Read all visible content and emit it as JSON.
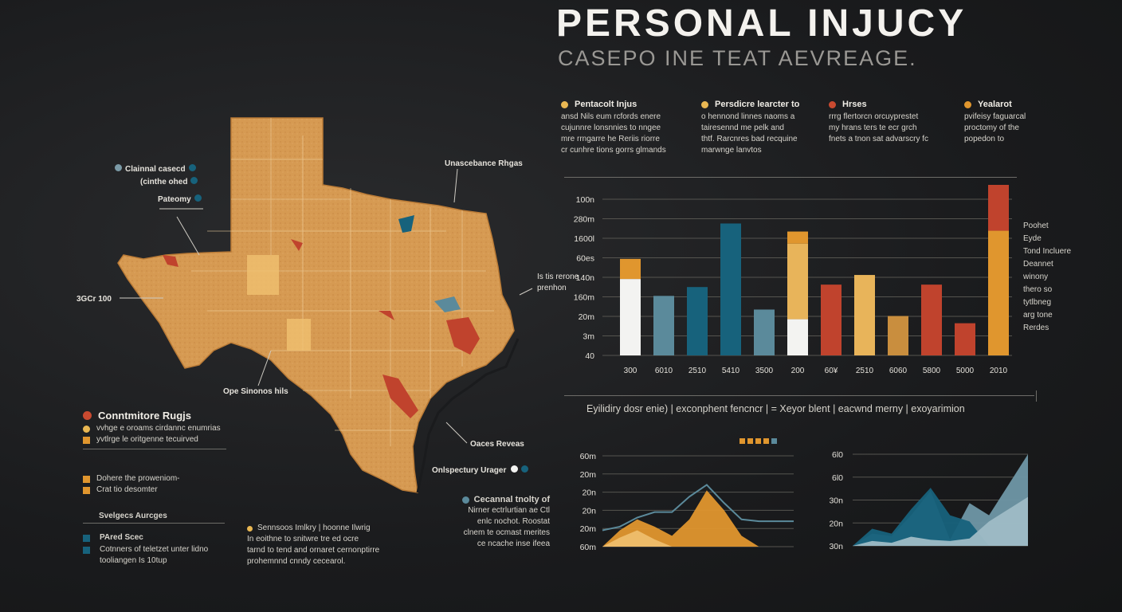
{
  "header": {
    "title": "PERSONAL INJUCY",
    "subtitle": "CASEPO INE TEAT AEVREAGE."
  },
  "colors": {
    "orange": "#e0962e",
    "light_orange": "#e8b45a",
    "red": "#c0432d",
    "teal": "#17627c",
    "steel": "#5b8a9b",
    "white": "#f3f3f1",
    "tan": "#d8a25a"
  },
  "top_legend": [
    {
      "color": "#e9b752",
      "title": "Pentacolt Injus",
      "lines": [
        "ansd Nils eum rcfords enere",
        "cujunnre lonsnnies to nngee",
        "mre rrngarre he Reriis riorre",
        "cr cunhre tions gorrs glmands"
      ]
    },
    {
      "color": "#e9b752",
      "title": "Persdicre learcter to",
      "lines": [
        "o hennond linnes naoms a",
        "tairesennd me pelk and",
        "thtf. Rarcnres bad recquine",
        "marwnge lanvtos"
      ]
    },
    {
      "color": "#c94a30",
      "title": "Hrses",
      "lines": [
        "rrrg flertorcn orcuyprestet",
        "my hrans ters te ecr grch",
        "fnets a tnon sat advarscry fc"
      ]
    },
    {
      "color": "#e0962e",
      "title": "Yealarot",
      "lines": [
        "pvifeisy faguarcal",
        "proctomy of the",
        "popedon to"
      ]
    }
  ],
  "map_labels": {
    "callout_1": "Clainnal casecd",
    "callout_2": "(cinthe ohed",
    "callout_3": "Pateomy",
    "callout_west": "3GCr 100",
    "callout_north": "Unascebance Rhgas",
    "callout_east_1": "Is tis rerone",
    "callout_east_2": "prenhon",
    "callout_south": "Ope Sinonos hils",
    "callout_coast": "Oaces Reveas",
    "callout_coast_2": "Onlspectury Urager"
  },
  "bottom_left": {
    "heading": "Conntmitore Rugjs",
    "lines": [
      "vvhge e oroams cirdannc enumrias",
      "yvtlrge le oritgenne tecuirved"
    ],
    "item_1": "Dohere the proweniom-",
    "item_2": "Crat tio desomter",
    "subheading": "Svelgecs Aurcges",
    "legend_1": "PAred Scec",
    "legend_2_lines": [
      "Cotnners of teletzet unter lidno",
      "tooliangen Is 10tup"
    ]
  },
  "bottom_mid": {
    "lines": [
      "Sennsoos Imlkry | hoonne Ilwrig",
      "In eoithne to snitwre tre ed ocre",
      "tarnd to tend and ornaret cernonptirre",
      "prohemnnd cnndy cecearol."
    ]
  },
  "bottom_note": {
    "title": "Cecannal tnolty of",
    "lines": [
      "Nirner ectrlurtian ae Ctl",
      "enlc nochot. Roostat",
      "clnem te ocmast merites",
      "ce ncache inse ifeea"
    ]
  },
  "bar_chart_side": {
    "lines": [
      "Poohet",
      "Eyde",
      "Tond Incluere",
      "Deannet",
      "winony",
      "thero so",
      "tytlbneg",
      "arg tone",
      "Rerdes"
    ]
  },
  "divider_caption": "Eyilidiry dosr enie)  |  exconphent fencncr  |  = Xeyor blent  |  eacwnd merny  |  exoyarimion",
  "chart_data": [
    {
      "type": "bar",
      "title": "",
      "y_tick_labels": [
        "100n",
        "280m",
        "1600l",
        "60es",
        "140n",
        "160m",
        "20m",
        "3m",
        "40"
      ],
      "categories": [
        "300",
        "6010",
        "2510",
        "5410",
        "3500",
        "200",
        "60¥",
        "2510",
        "6060",
        "5800",
        "5000",
        "2010"
      ],
      "series": [
        {
          "name": "white",
          "color": "#f3f3f1",
          "values": [
            95,
            0,
            0,
            0,
            0,
            45,
            0,
            0,
            0,
            0,
            0,
            0
          ]
        },
        {
          "name": "steel",
          "color": "#5b8a9b",
          "values": [
            0,
            74,
            0,
            0,
            57,
            0,
            0,
            0,
            0,
            0,
            0,
            0
          ]
        },
        {
          "name": "teal",
          "color": "#17627c",
          "values": [
            0,
            0,
            85,
            164,
            0,
            0,
            0,
            0,
            0,
            0,
            0,
            0
          ]
        },
        {
          "name": "light_orange",
          "color": "#e8b45a",
          "values": [
            0,
            0,
            0,
            0,
            0,
            94,
            0,
            100,
            0,
            0,
            0,
            0
          ]
        },
        {
          "name": "orange",
          "color": "#e0962e",
          "values": [
            25,
            0,
            0,
            0,
            0,
            15,
            0,
            0,
            0,
            0,
            0,
            155
          ]
        },
        {
          "name": "red",
          "color": "#c0432d",
          "values": [
            0,
            0,
            0,
            0,
            0,
            0,
            88,
            0,
            0,
            88,
            40,
            57
          ]
        },
        {
          "name": "tan",
          "color": "#c98e3e",
          "values": [
            0,
            0,
            0,
            0,
            0,
            0,
            0,
            0,
            49,
            0,
            0,
            0
          ]
        }
      ],
      "ylim": [
        0,
        212
      ]
    },
    {
      "type": "area",
      "title": "",
      "y_tick_labels": [
        "60m",
        "20m",
        "20n",
        "20n",
        "20m",
        "60m"
      ],
      "x": [
        0,
        1,
        2,
        3,
        4,
        5,
        6,
        7,
        8,
        9,
        10,
        11
      ],
      "series": [
        {
          "name": "line",
          "color": "#5b8a9b",
          "values": [
            18,
            22,
            32,
            38,
            38,
            55,
            68,
            48,
            30,
            28,
            28,
            28
          ]
        },
        {
          "name": "orange",
          "color": "#e0962e",
          "values": [
            0,
            18,
            30,
            22,
            12,
            30,
            62,
            40,
            12,
            0,
            0,
            0
          ]
        },
        {
          "name": "light",
          "color": "#f0c070",
          "values": [
            0,
            10,
            18,
            8,
            0,
            0,
            0,
            0,
            0,
            0,
            0,
            0
          ]
        }
      ],
      "legend_swatches": [
        "#e0962e",
        "#e0962e",
        "#e0962e",
        "#e0962e",
        "#5b8a9b"
      ],
      "ylim": [
        0,
        100
      ]
    },
    {
      "type": "area",
      "title": "",
      "y_tick_labels": [
        "6l0",
        "6l0",
        "30n",
        "20n",
        "30n"
      ],
      "x": [
        0,
        1,
        2,
        3,
        4,
        5,
        6,
        7,
        8,
        9
      ],
      "series": [
        {
          "name": "steel",
          "color": "#6f97a6",
          "values": [
            0,
            20,
            16,
            50,
            90,
            10,
            70,
            50,
            100,
            150
          ]
        },
        {
          "name": "teal",
          "color": "#17627c",
          "values": [
            0,
            28,
            20,
            60,
            95,
            50,
            40,
            0,
            0,
            0
          ]
        },
        {
          "name": "light",
          "color": "#9fbcc6",
          "values": [
            0,
            8,
            5,
            15,
            10,
            8,
            12,
            40,
            60,
            80
          ]
        }
      ],
      "ylim": [
        0,
        150
      ]
    }
  ]
}
